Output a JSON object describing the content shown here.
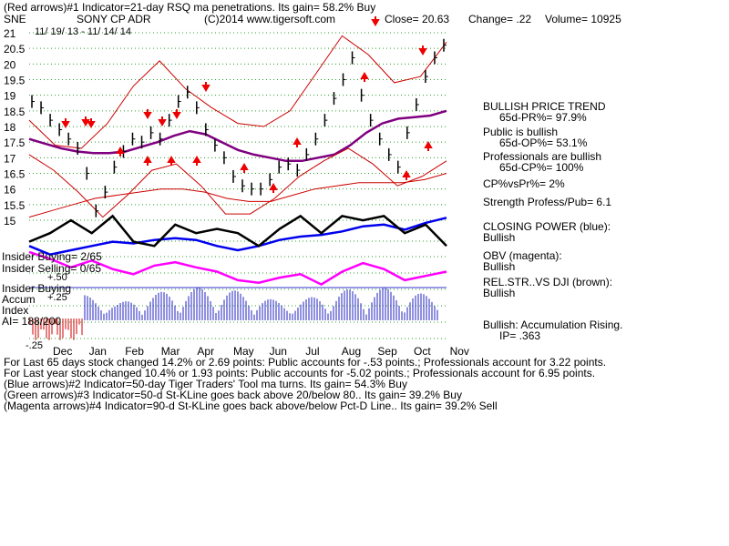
{
  "header": {
    "line1": "(Red arrows)#1 Indicator=21-day RSQ ma penetrations. Its gain= 58.2% Buy",
    "ticker": "SNE",
    "company": "SONY CP ADR",
    "copyright": "(C)2014 www.tigersoft.com",
    "close": "Close= 20.63",
    "change": "Change= .22",
    "volume": "Volume= 10925",
    "date_range": "11/ 19/ 13 - 11/ 14/ 14"
  },
  "panel_labels": {
    "insider_buying_count": "Insider Buying= 2/65",
    "insider_selling_count": "Insider Selling= 0/65",
    "plus50": "+.50",
    "insider_buying": "Insider Buying",
    "accum": "Accum",
    "plus25": "+.25",
    "index": "Index",
    "ai": "AI= 188/200",
    "minus25": "-.25"
  },
  "right_panel": {
    "trend_title": "BULLISH PRICE TREND",
    "pr": "65d-PR%= 97.9%",
    "public_bullish": "Public is bullish",
    "op": "65d-OP%= 53.1%",
    "pros_bullish": "Professionals are bullish",
    "cp": "65d-CP%= 100%",
    "cpvspr": "CP%vsPr%=  2%",
    "strength": "Strength Profess/Pub= 6.1",
    "closing_power": "CLOSING POWER (blue):",
    "closing_power_val": "Bullish",
    "obv": "OBV (magenta):",
    "obv_val": "Bullish",
    "relstr": "REL.STR..VS DJI (brown):",
    "relstr_val": "Bullish",
    "accum": "Bullish: Accumulation Rising.",
    "ip": "IP=  .363"
  },
  "footer": [
    "For Last 65 days stock changed  14.2% or  2.69 points:  Public accounts for -.53 points.;  Professionals account for  3.22 points.",
    "For Last year stock changed  10.4% or  1.93 points:  Public accounts for -5.02 points.;  Professionals account for  6.95 points.",
    "(Blue arrows)#2 Indicator=50-day Tiger Traders' Tool ma turns. Its gain= 54.3% Buy",
    "(Green arrows)#3 Indicator=50-d St-KLine goes back above 20/below 80.. Its gain= 39.2% Buy",
    "(Magenta arrows)#4 Indicator=90-d St-KLine goes back above/below Pct-D Line.. Its gain= 39.2% Sell"
  ],
  "chart_data": {
    "type": "line",
    "y_ticks": [
      "21",
      "20.5",
      "20",
      "19.5",
      "19",
      "18.5",
      "18",
      "17.5",
      "17",
      "16.5",
      "16",
      "15.5",
      "15"
    ],
    "ylim": [
      15,
      21
    ],
    "x_month_labels": [
      "Dec",
      "Jan",
      "Feb",
      "Mar",
      "Apr",
      "May",
      "Jun",
      "Jul",
      "Aug",
      "Sep",
      "Oct",
      "Nov"
    ],
    "grid": true,
    "series": [
      {
        "name": "close",
        "color": "#000000",
        "values": [
          18.8,
          18.6,
          18.2,
          17.9,
          17.6,
          17.3,
          16.5,
          15.3,
          15.9,
          16.7,
          17.2,
          17.6,
          17.5,
          17.8,
          17.6,
          18.2,
          18.8,
          19.1,
          18.6,
          17.9,
          17.4,
          17.0,
          16.4,
          16.1,
          16.0,
          16.0,
          16.3,
          16.7,
          16.8,
          16.6,
          17.1,
          17.6,
          18.2,
          18.9,
          19.5,
          20.2,
          19.0,
          18.2,
          17.6,
          17.1,
          16.7,
          17.8,
          18.7,
          19.6,
          20.2,
          20.6
        ]
      },
      {
        "name": "50-day ma",
        "color": "#800080",
        "values": [
          17.6,
          17.45,
          17.3,
          17.2,
          17.15,
          17.15,
          17.2,
          17.35,
          17.5,
          17.7,
          17.85,
          17.75,
          17.5,
          17.25,
          17.1,
          17.0,
          16.9,
          16.9,
          17.0,
          17.1,
          17.4,
          17.8,
          18.1,
          18.25,
          18.3,
          18.35,
          18.5
        ]
      },
      {
        "name": "upper band",
        "color": "#cc0000",
        "values": [
          18.2,
          17.4,
          17.3,
          18.1,
          19.3,
          20.1,
          19.2,
          18.6,
          18.1,
          18.0,
          18.5,
          19.7,
          20.9,
          20.3,
          19.4,
          19.6,
          20.7
        ]
      },
      {
        "name": "lower band",
        "color": "#cc0000",
        "values": [
          17.1,
          16.6,
          15.9,
          15.1,
          15.8,
          16.6,
          16.8,
          16.1,
          15.2,
          15.2,
          15.7,
          16.4,
          16.9,
          17.3,
          16.8,
          16.1,
          16.4,
          16.9
        ]
      },
      {
        "name": "red ma",
        "color": "#cc0000",
        "values": [
          15.1,
          15.3,
          15.5,
          15.7,
          15.8,
          15.9,
          16.0,
          16.0,
          15.9,
          15.7,
          15.6,
          15.6,
          15.8,
          16.0,
          16.1,
          16.2,
          16.2,
          16.2,
          16.3,
          16.5
        ]
      }
    ],
    "lower_series": [
      {
        "name": "Closing Power",
        "color": "#0000ee",
        "values": [
          0.55,
          0.45,
          0.5,
          0.55,
          0.6,
          0.58,
          0.62,
          0.64,
          0.62,
          0.55,
          0.5,
          0.55,
          0.62,
          0.66,
          0.68,
          0.72,
          0.78,
          0.8,
          0.74,
          0.82,
          0.88
        ]
      },
      {
        "name": "OBV",
        "color": "#ff00ff",
        "values": [
          0.48,
          0.4,
          0.3,
          0.38,
          0.28,
          0.22,
          0.32,
          0.36,
          0.3,
          0.25,
          0.15,
          0.12,
          0.18,
          0.22,
          0.1,
          0.25,
          0.35,
          0.28,
          0.15,
          0.2,
          0.25
        ]
      },
      {
        "name": "Rel Str vs DJI",
        "color": "#000000",
        "values": [
          0.6,
          0.7,
          0.85,
          0.7,
          0.9,
          0.6,
          0.55,
          0.8,
          0.7,
          0.75,
          0.7,
          0.55,
          0.75,
          0.9,
          0.7,
          0.9,
          0.85,
          0.9,
          0.7,
          0.8,
          0.55
        ]
      }
    ]
  }
}
